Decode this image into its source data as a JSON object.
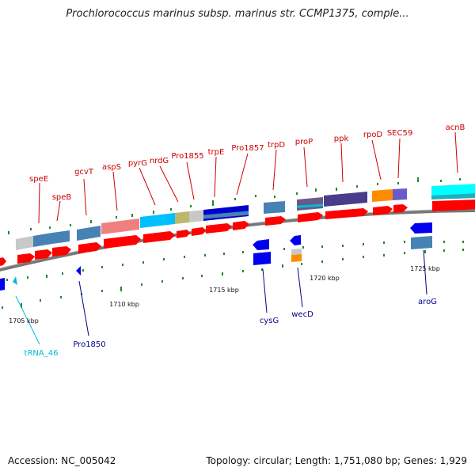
{
  "title": "Prochlorococcus marinus subsp. marinus str. CCMP1375, comple...",
  "footer": {
    "accession": "Accession: NC_005042",
    "summary": "Topology: circular; Length: 1,751,080 bp; Genes: 1,929"
  },
  "colors": {
    "forward_label": "#cc0000",
    "reverse_label": "#00008b",
    "rna_label": "#00bcd4",
    "cds_forward": "#ff0000",
    "cds_reverse": "#0000ee",
    "backbone": "#888888",
    "gc_tick": "#228822",
    "tick_label": "#111111"
  },
  "ticks": [
    {
      "label": "1705 kbp"
    },
    {
      "label": "1710 kbp"
    },
    {
      "label": "1715 kbp"
    },
    {
      "label": "1720 kbp"
    },
    {
      "label": "1725 kbp"
    }
  ],
  "forward_genes": [
    {
      "label": "speE"
    },
    {
      "label": "speB"
    },
    {
      "label": "gcvT"
    },
    {
      "label": "aspS"
    },
    {
      "label": "pyrG"
    },
    {
      "label": "nrdG"
    },
    {
      "label": "Pro1855"
    },
    {
      "label": "trpE"
    },
    {
      "label": "Pro1857"
    },
    {
      "label": "trpD"
    },
    {
      "label": "proP"
    },
    {
      "label": "ppk"
    },
    {
      "label": "rpoD"
    },
    {
      "label": "SEC59"
    },
    {
      "label": "acnB"
    }
  ],
  "reverse_genes": [
    {
      "label": "tRNA_46",
      "kind": "rna"
    },
    {
      "label": "Pro1850",
      "kind": "cds"
    },
    {
      "label": "cysG",
      "kind": "cds"
    },
    {
      "label": "wecD",
      "kind": "cds"
    },
    {
      "label": "aroG",
      "kind": "cds"
    }
  ]
}
